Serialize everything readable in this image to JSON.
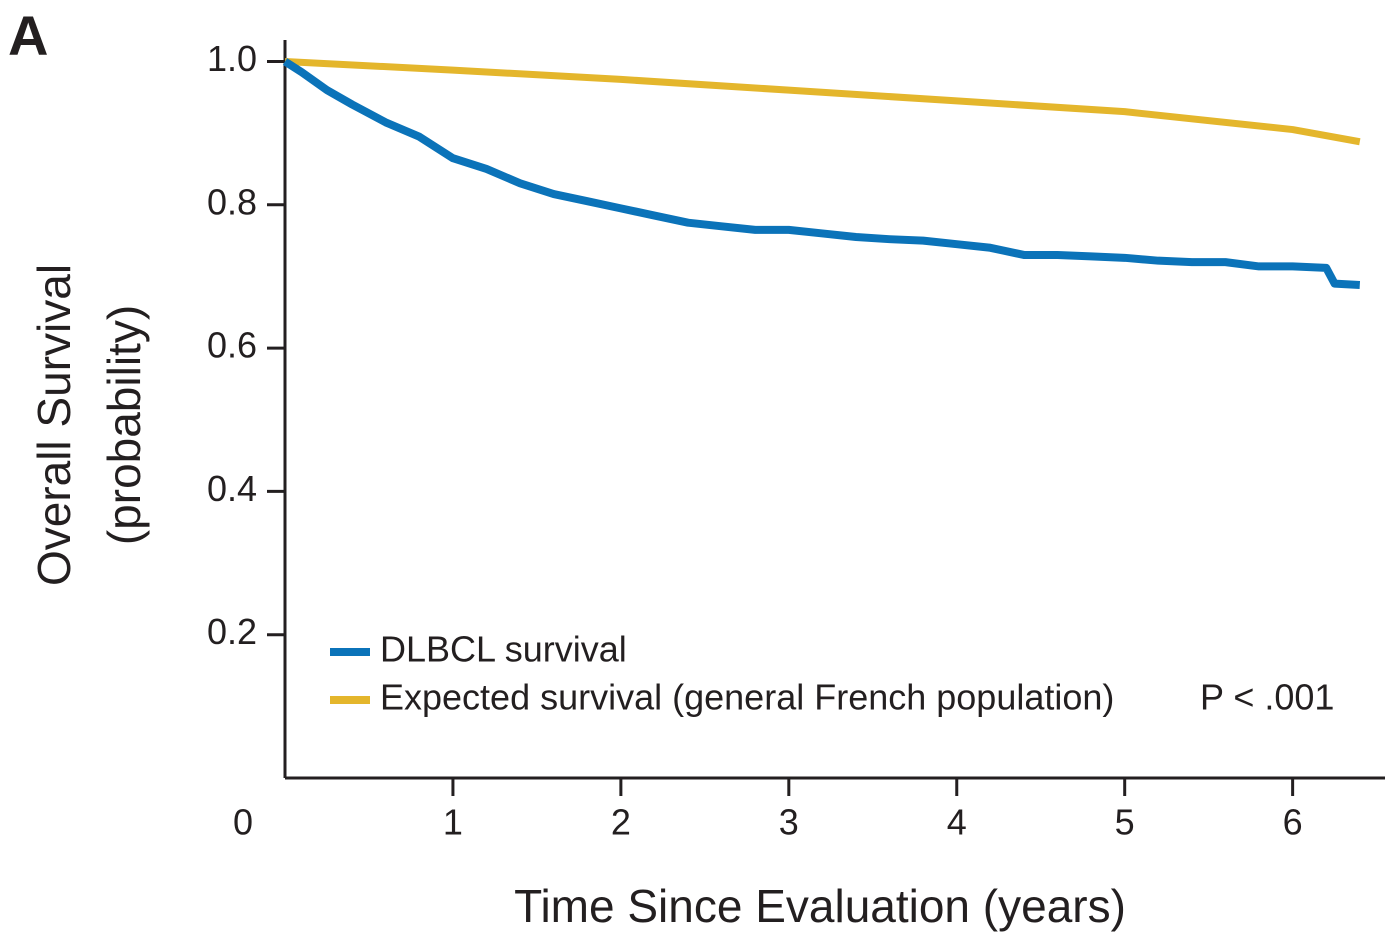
{
  "chart_data": {
    "type": "line",
    "panel_label": "A",
    "ylabel": [
      "Overall Survival",
      "(probability)"
    ],
    "xlabel": "Time Since Evaluation (years)",
    "annotation": "P < .001",
    "xlim": [
      0,
      6.55
    ],
    "ylim": [
      0,
      1.03
    ],
    "xticks": [
      0,
      1,
      2,
      3,
      4,
      5,
      6
    ],
    "yticks": [
      0.2,
      0.4,
      0.6,
      0.8,
      {
        "value": 1,
        "label": "1.0"
      }
    ],
    "legend": "lower left",
    "series": [
      {
        "name": "DLBCL survival",
        "color": "#0b73b9",
        "x": [
          0,
          0.1,
          0.25,
          0.4,
          0.6,
          0.8,
          1.0,
          1.2,
          1.4,
          1.6,
          1.8,
          2.0,
          2.2,
          2.4,
          2.6,
          2.8,
          3.0,
          3.2,
          3.4,
          3.6,
          3.8,
          4.0,
          4.2,
          4.4,
          4.6,
          4.8,
          5.0,
          5.2,
          5.4,
          5.6,
          5.8,
          6.0,
          6.2,
          6.25,
          6.4
        ],
        "values": [
          1.0,
          0.985,
          0.96,
          0.94,
          0.915,
          0.895,
          0.865,
          0.85,
          0.83,
          0.815,
          0.805,
          0.795,
          0.785,
          0.775,
          0.77,
          0.765,
          0.765,
          0.76,
          0.755,
          0.752,
          0.75,
          0.745,
          0.74,
          0.73,
          0.73,
          0.728,
          0.726,
          0.722,
          0.72,
          0.72,
          0.714,
          0.714,
          0.712,
          0.69,
          0.688
        ]
      },
      {
        "name": "Expected survival (general French population)",
        "color": "#e4b62c",
        "x": [
          0,
          1,
          2,
          3,
          4,
          5,
          6,
          6.4
        ],
        "values": [
          1.0,
          0.988,
          0.975,
          0.96,
          0.945,
          0.93,
          0.905,
          0.888
        ]
      }
    ]
  }
}
